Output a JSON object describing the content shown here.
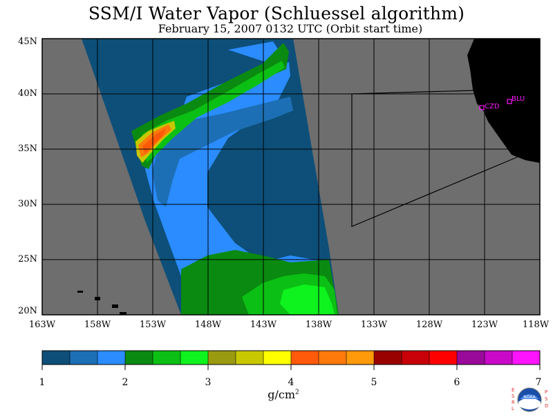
{
  "title": "SSM/I Water Vapor (Schluessel algorithm)",
  "subtitle": "February 15, 2007  0132 UTC  (Orbit start time)",
  "map": {
    "lat_labels": [
      "45N",
      "40N",
      "35N",
      "30N",
      "25N",
      "20N"
    ],
    "lon_labels": [
      "163W",
      "158W",
      "153W",
      "148W",
      "143W",
      "138W",
      "133W",
      "128W",
      "123W",
      "118W"
    ],
    "stations": [
      {
        "code": "CZD"
      },
      {
        "code": "BLU"
      }
    ],
    "land_color": "#000000",
    "nodata_color": "#6e6e6e"
  },
  "colorbar": {
    "colors": [
      "#0d4f79",
      "#1d6fb5",
      "#2a8cff",
      "#0a8a10",
      "#0cbf14",
      "#0ef21e",
      "#9a9a10",
      "#c8c800",
      "#ffff00",
      "#ff5a0a",
      "#ff7a0a",
      "#ff9a0a",
      "#990000",
      "#c80008",
      "#ff0000",
      "#9a0a9a",
      "#c80ac8",
      "#ff14ff"
    ],
    "tick_labels": [
      "1",
      "2",
      "3",
      "4",
      "5",
      "6",
      "7"
    ],
    "units": "g/cm",
    "units_sup": "2"
  },
  "logo": {
    "left_letters": "ESRL",
    "right_letters": "PSD",
    "center": "NOAA"
  }
}
